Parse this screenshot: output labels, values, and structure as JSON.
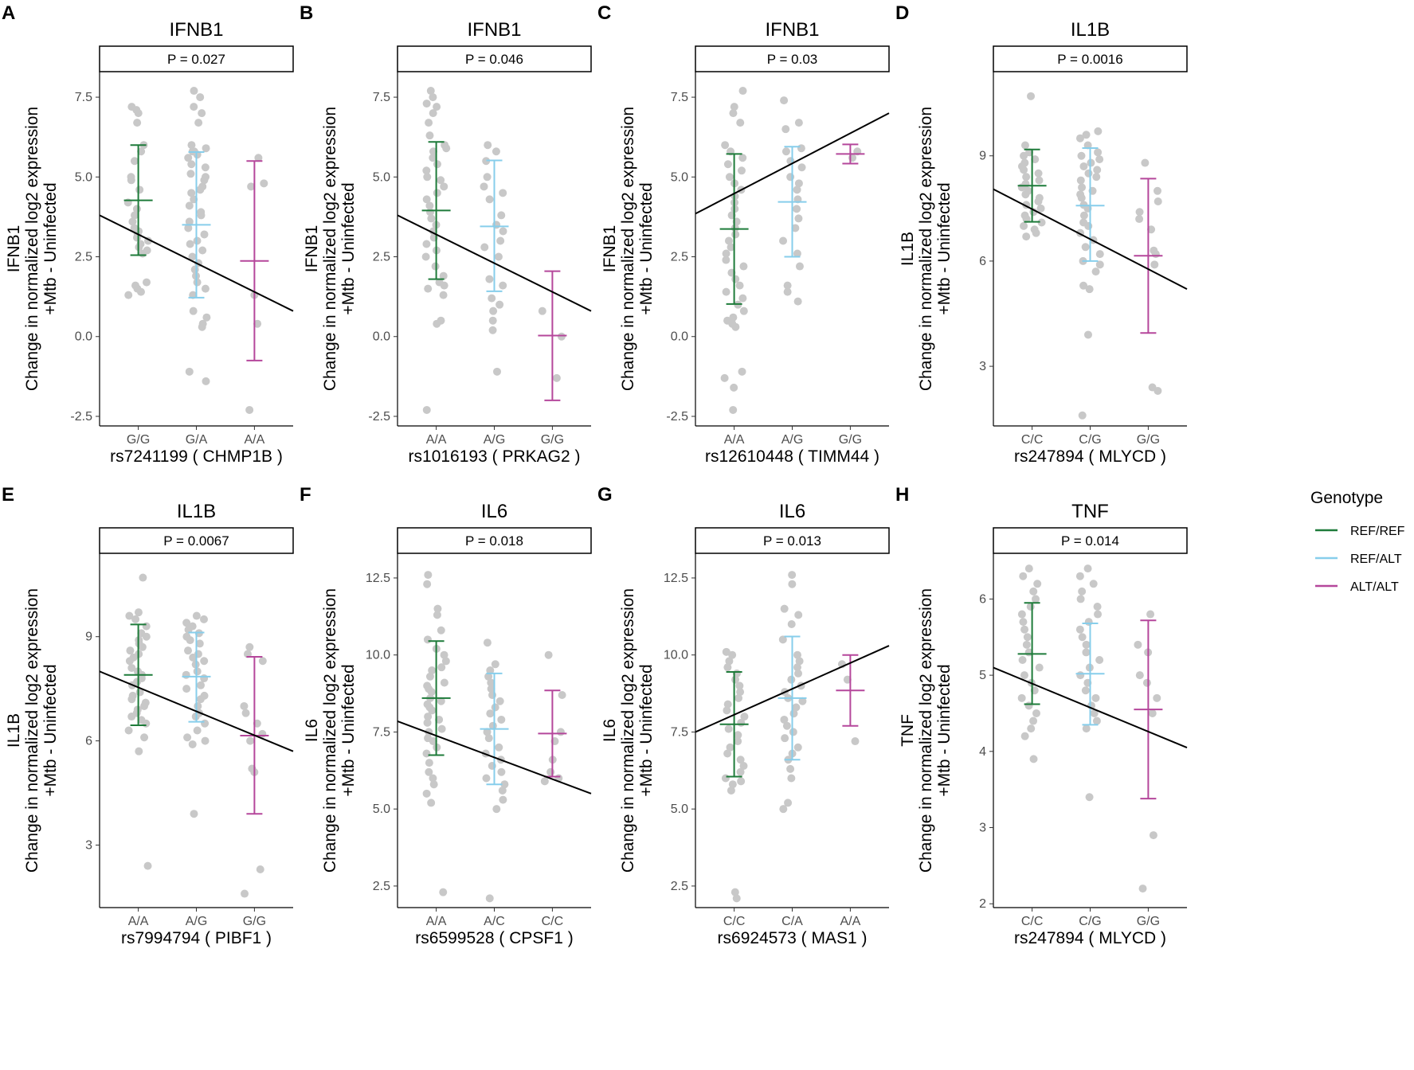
{
  "legend": {
    "title": "Genotype",
    "items": [
      {
        "label": "REF/REF",
        "color": "#1e7b3a"
      },
      {
        "label": "REF/ALT",
        "color": "#87ceeb"
      },
      {
        "label": "ALT/ALT",
        "color": "#b5479b"
      }
    ]
  },
  "y_axis_label_line2": "Change in normalized log2 expression",
  "y_axis_label_line3": "+Mtb - Uninfected",
  "chart_data": [
    {
      "letter": "A",
      "type": "scatter",
      "title": "IFNB1",
      "pvalue": "P = 0.027",
      "xlabel": "rs7241199 ( CHMP1B )",
      "categories": [
        "G/G",
        "G/A",
        "A/A"
      ],
      "ylim": [
        -2.8,
        8.3
      ],
      "yticks": [
        -2.5,
        0.0,
        2.5,
        5.0,
        7.5
      ],
      "yticklabels": [
        "-2.5",
        "0.0",
        "2.5",
        "5.0",
        "7.5"
      ],
      "means": [
        4.27,
        3.5,
        2.37
      ],
      "lower": [
        2.55,
        1.22,
        -0.75
      ],
      "upper": [
        6.0,
        5.78,
        5.5
      ],
      "trend": [
        3.8,
        0.8
      ],
      "points": [
        [
          7.2,
          7.1,
          7.0,
          6.7,
          6.0,
          5.8,
          5.5,
          5.0,
          4.9,
          4.6,
          4.2,
          4.0,
          3.8,
          3.6,
          3.4,
          3.3,
          3.2,
          3.1,
          3.0,
          2.9,
          2.8,
          2.7,
          2.6,
          1.7,
          1.6,
          1.5,
          1.4,
          1.3
        ],
        [
          7.7,
          7.5,
          7.2,
          7.0,
          6.7,
          6.0,
          5.9,
          5.8,
          5.8,
          5.7,
          5.6,
          5.4,
          5.3,
          5.1,
          5.0,
          4.9,
          4.7,
          4.6,
          4.5,
          4.3,
          4.1,
          3.9,
          3.8,
          3.6,
          3.4,
          3.2,
          3.0,
          2.9,
          2.7,
          2.5,
          2.3,
          2.1,
          1.9,
          1.7,
          1.5,
          1.3,
          0.8,
          0.6,
          0.4,
          0.3,
          -1.1,
          -1.4
        ],
        [
          5.6,
          4.8,
          4.7,
          1.3,
          0.4,
          -2.3
        ]
      ]
    },
    {
      "letter": "B",
      "type": "scatter",
      "title": "IFNB1",
      "pvalue": "P = 0.046",
      "xlabel": "rs1016193 ( PRKAG2 )",
      "categories": [
        "A/A",
        "A/G",
        "G/G"
      ],
      "ylim": [
        -2.8,
        8.3
      ],
      "yticks": [
        -2.5,
        0.0,
        2.5,
        5.0,
        7.5
      ],
      "yticklabels": [
        "-2.5",
        "0.0",
        "2.5",
        "5.0",
        "7.5"
      ],
      "means": [
        3.95,
        3.45,
        0.03
      ],
      "lower": [
        1.8,
        1.42,
        -2.0
      ],
      "upper": [
        6.1,
        5.52,
        2.05
      ],
      "trend": [
        3.8,
        0.8
      ],
      "points": [
        [
          7.7,
          7.5,
          7.3,
          7.2,
          7.0,
          6.7,
          6.3,
          6.0,
          5.9,
          5.8,
          5.6,
          5.4,
          5.2,
          5.0,
          4.9,
          4.7,
          4.5,
          4.3,
          4.1,
          3.9,
          3.7,
          3.5,
          3.3,
          3.1,
          2.9,
          2.7,
          2.5,
          2.2,
          1.9,
          1.7,
          1.6,
          1.5,
          1.3,
          0.5,
          0.4,
          -2.3
        ],
        [
          6.0,
          5.8,
          5.5,
          5.0,
          4.7,
          4.5,
          4.3,
          3.8,
          3.5,
          3.3,
          3.0,
          2.8,
          2.5,
          1.8,
          1.6,
          1.2,
          1.0,
          0.8,
          0.5,
          0.2,
          -1.1
        ],
        [
          0.8,
          0.0,
          -1.3
        ]
      ]
    },
    {
      "letter": "C",
      "type": "scatter",
      "title": "IFNB1",
      "pvalue": "P = 0.03",
      "xlabel": "rs12610448 ( TIMM44 )",
      "categories": [
        "A/A",
        "A/G",
        "G/G"
      ],
      "ylim": [
        -2.8,
        8.3
      ],
      "yticks": [
        -2.5,
        0.0,
        2.5,
        5.0,
        7.5
      ],
      "yticklabels": [
        "-2.5",
        "0.0",
        "2.5",
        "5.0",
        "7.5"
      ],
      "means": [
        3.37,
        4.22,
        5.72
      ],
      "lower": [
        1.02,
        2.5,
        5.42
      ],
      "upper": [
        5.72,
        5.95,
        6.02
      ],
      "trend": [
        3.85,
        7.0
      ],
      "points": [
        [
          7.7,
          7.2,
          7.0,
          6.7,
          6.0,
          5.8,
          5.6,
          5.4,
          5.2,
          5.0,
          4.8,
          4.6,
          4.4,
          4.2,
          4.0,
          3.8,
          3.6,
          3.4,
          3.2,
          3.0,
          2.8,
          2.6,
          2.4,
          2.2,
          2.0,
          1.8,
          1.6,
          1.4,
          1.2,
          1.0,
          0.8,
          0.6,
          0.5,
          0.4,
          0.3,
          -1.1,
          -1.3,
          -1.6,
          -2.3
        ],
        [
          7.4,
          6.7,
          6.5,
          5.9,
          5.8,
          5.5,
          5.3,
          5.0,
          4.8,
          4.6,
          4.3,
          4.0,
          3.7,
          3.4,
          3.0,
          2.6,
          2.2,
          1.6,
          1.4,
          1.1
        ],
        [
          5.8,
          5.6
        ]
      ]
    },
    {
      "letter": "D",
      "type": "scatter",
      "title": "IL1B",
      "pvalue": "P = 0.0016",
      "xlabel": "rs247894 ( MLYCD )",
      "categories": [
        "C/C",
        "C/G",
        "G/G"
      ],
      "ylim": [
        1.3,
        11.4
      ],
      "yticks": [
        3,
        6,
        9
      ],
      "yticklabels": [
        "3",
        "6",
        "9"
      ],
      "means": [
        8.15,
        7.58,
        6.15
      ],
      "lower": [
        7.12,
        6.0,
        3.95
      ],
      "upper": [
        9.18,
        9.22,
        8.35
      ],
      "trend": [
        8.05,
        5.2
      ],
      "points": [
        [
          10.7,
          9.3,
          9.1,
          9.0,
          8.9,
          8.8,
          8.7,
          8.6,
          8.5,
          8.4,
          8.3,
          8.2,
          8.1,
          8.0,
          7.9,
          7.8,
          7.7,
          7.6,
          7.5,
          7.4,
          7.3,
          7.2,
          7.1,
          7.0,
          6.9,
          6.8,
          6.7
        ],
        [
          9.7,
          9.6,
          9.5,
          9.3,
          9.1,
          9.0,
          8.9,
          8.8,
          8.7,
          8.6,
          8.5,
          8.4,
          8.3,
          8.1,
          8.0,
          7.9,
          7.8,
          7.6,
          7.5,
          7.3,
          7.1,
          7.0,
          6.8,
          6.6,
          6.4,
          6.2,
          6.0,
          5.9,
          5.7,
          5.3,
          5.2,
          3.9,
          1.6
        ],
        [
          8.8,
          8.0,
          7.7,
          7.4,
          7.2,
          6.9,
          6.3,
          6.2,
          5.9,
          2.4,
          2.3
        ]
      ]
    },
    {
      "letter": "E",
      "type": "scatter",
      "title": "IL1B",
      "pvalue": "P = 0.0067",
      "xlabel": "rs7994794 ( PIBF1 )",
      "categories": [
        "A/A",
        "A/G",
        "G/G"
      ],
      "ylim": [
        1.2,
        11.4
      ],
      "yticks": [
        3,
        6,
        9
      ],
      "yticklabels": [
        "3",
        "6",
        "9"
      ],
      "means": [
        7.9,
        7.85,
        6.15
      ],
      "lower": [
        6.45,
        6.55,
        3.9
      ],
      "upper": [
        9.35,
        9.12,
        8.42
      ],
      "trend": [
        8.0,
        5.7
      ],
      "points": [
        [
          10.7,
          9.7,
          9.6,
          9.5,
          9.3,
          9.1,
          9.0,
          8.9,
          8.8,
          8.7,
          8.6,
          8.5,
          8.4,
          8.3,
          8.1,
          8.0,
          7.9,
          7.8,
          7.7,
          7.6,
          7.4,
          7.3,
          7.2,
          7.1,
          7.0,
          6.9,
          6.8,
          6.7,
          6.6,
          6.5,
          6.3,
          6.1,
          5.7,
          2.4
        ],
        [
          9.6,
          9.5,
          9.4,
          9.3,
          9.2,
          9.1,
          9.0,
          8.9,
          8.8,
          8.6,
          8.5,
          8.4,
          8.3,
          8.2,
          8.0,
          7.9,
          7.8,
          7.6,
          7.5,
          7.3,
          7.2,
          7.0,
          6.8,
          6.7,
          6.5,
          6.3,
          6.1,
          6.0,
          5.9,
          3.9
        ],
        [
          8.7,
          8.5,
          8.3,
          7.0,
          6.8,
          6.5,
          6.2,
          6.0,
          5.2,
          5.1,
          2.3,
          1.6
        ]
      ]
    },
    {
      "letter": "F",
      "type": "scatter",
      "title": "IL6",
      "pvalue": "P = 0.018",
      "xlabel": "rs6599528 ( CPSF1 )",
      "categories": [
        "A/A",
        "A/C",
        "C/C"
      ],
      "ylim": [
        1.8,
        13.3
      ],
      "yticks": [
        2.5,
        5.0,
        7.5,
        10.0,
        12.5
      ],
      "yticklabels": [
        "2.5",
        "5.0",
        "7.5",
        "10.0",
        "12.5"
      ],
      "means": [
        8.6,
        7.6,
        7.45
      ],
      "lower": [
        6.75,
        5.8,
        6.05
      ],
      "upper": [
        10.45,
        9.4,
        8.85
      ],
      "trend": [
        7.85,
        5.5
      ],
      "points": [
        [
          12.6,
          12.3,
          11.5,
          11.3,
          10.8,
          10.5,
          10.2,
          10.0,
          9.8,
          9.6,
          9.5,
          9.3,
          9.1,
          9.0,
          8.9,
          8.8,
          8.6,
          8.5,
          8.4,
          8.3,
          8.2,
          8.0,
          7.9,
          7.8,
          7.6,
          7.5,
          7.3,
          7.2,
          7.0,
          6.8,
          6.5,
          6.2,
          6.0,
          5.8,
          5.5,
          5.2,
          2.3
        ],
        [
          10.4,
          9.7,
          9.5,
          9.3,
          9.1,
          8.9,
          8.7,
          8.5,
          8.3,
          8.1,
          7.9,
          7.7,
          7.5,
          7.3,
          7.0,
          6.8,
          6.6,
          6.4,
          6.2,
          6.0,
          5.8,
          5.6,
          5.3,
          5.0,
          2.1
        ],
        [
          10.0,
          8.7,
          7.5,
          7.2,
          6.6,
          6.2,
          6.0,
          5.9
        ]
      ]
    },
    {
      "letter": "G",
      "type": "scatter",
      "title": "IL6",
      "pvalue": "P = 0.013",
      "xlabel": "rs6924573 ( MAS1 )",
      "categories": [
        "C/C",
        "C/A",
        "A/A"
      ],
      "ylim": [
        1.8,
        13.3
      ],
      "yticks": [
        2.5,
        5.0,
        7.5,
        10.0,
        12.5
      ],
      "yticklabels": [
        "2.5",
        "5.0",
        "7.5",
        "10.0",
        "12.5"
      ],
      "means": [
        7.75,
        8.6,
        8.85
      ],
      "lower": [
        6.05,
        6.6,
        7.7
      ],
      "upper": [
        9.45,
        10.6,
        10.0
      ],
      "trend": [
        7.5,
        10.3
      ],
      "points": [
        [
          10.1,
          10.0,
          9.8,
          9.6,
          9.4,
          9.2,
          9.0,
          8.8,
          8.6,
          8.4,
          8.2,
          8.0,
          7.8,
          7.6,
          7.4,
          7.2,
          7.0,
          6.8,
          6.6,
          6.4,
          6.2,
          6.0,
          5.9,
          5.8,
          5.6,
          2.3,
          2.1
        ],
        [
          12.6,
          12.3,
          11.5,
          11.3,
          11.0,
          10.5,
          10.0,
          9.8,
          9.6,
          9.4,
          9.2,
          9.0,
          8.8,
          8.6,
          8.5,
          8.3,
          8.1,
          7.9,
          7.7,
          7.5,
          7.3,
          7.0,
          6.8,
          6.6,
          6.3,
          6.0,
          5.2,
          5.0
        ],
        [
          9.7,
          9.2,
          7.2
        ]
      ]
    },
    {
      "letter": "H",
      "type": "scatter",
      "title": "TNF",
      "pvalue": "P = 0.014",
      "xlabel": "rs247894 ( MLYCD )",
      "categories": [
        "C/C",
        "C/G",
        "G/G"
      ],
      "ylim": [
        1.95,
        6.6
      ],
      "yticks": [
        2,
        3,
        4,
        5,
        6
      ],
      "yticklabels": [
        "2",
        "3",
        "4",
        "5",
        "6"
      ],
      "means": [
        5.28,
        5.02,
        4.55
      ],
      "lower": [
        4.62,
        4.35,
        3.38
      ],
      "upper": [
        5.95,
        5.68,
        5.72
      ],
      "trend": [
        5.1,
        4.05
      ],
      "points": [
        [
          6.4,
          6.3,
          6.2,
          6.1,
          6.0,
          5.9,
          5.8,
          5.7,
          5.6,
          5.5,
          5.4,
          5.3,
          5.2,
          5.1,
          5.0,
          4.9,
          4.8,
          4.7,
          4.6,
          4.5,
          4.4,
          4.3,
          4.2,
          3.9
        ],
        [
          6.4,
          6.3,
          6.2,
          6.1,
          6.0,
          5.9,
          5.8,
          5.7,
          5.6,
          5.5,
          5.4,
          5.3,
          5.2,
          5.1,
          5.0,
          4.9,
          4.8,
          4.7,
          4.6,
          4.5,
          4.4,
          4.3,
          3.4
        ],
        [
          5.8,
          5.4,
          5.3,
          5.0,
          4.9,
          4.7,
          4.5,
          2.9,
          2.2
        ]
      ]
    }
  ]
}
